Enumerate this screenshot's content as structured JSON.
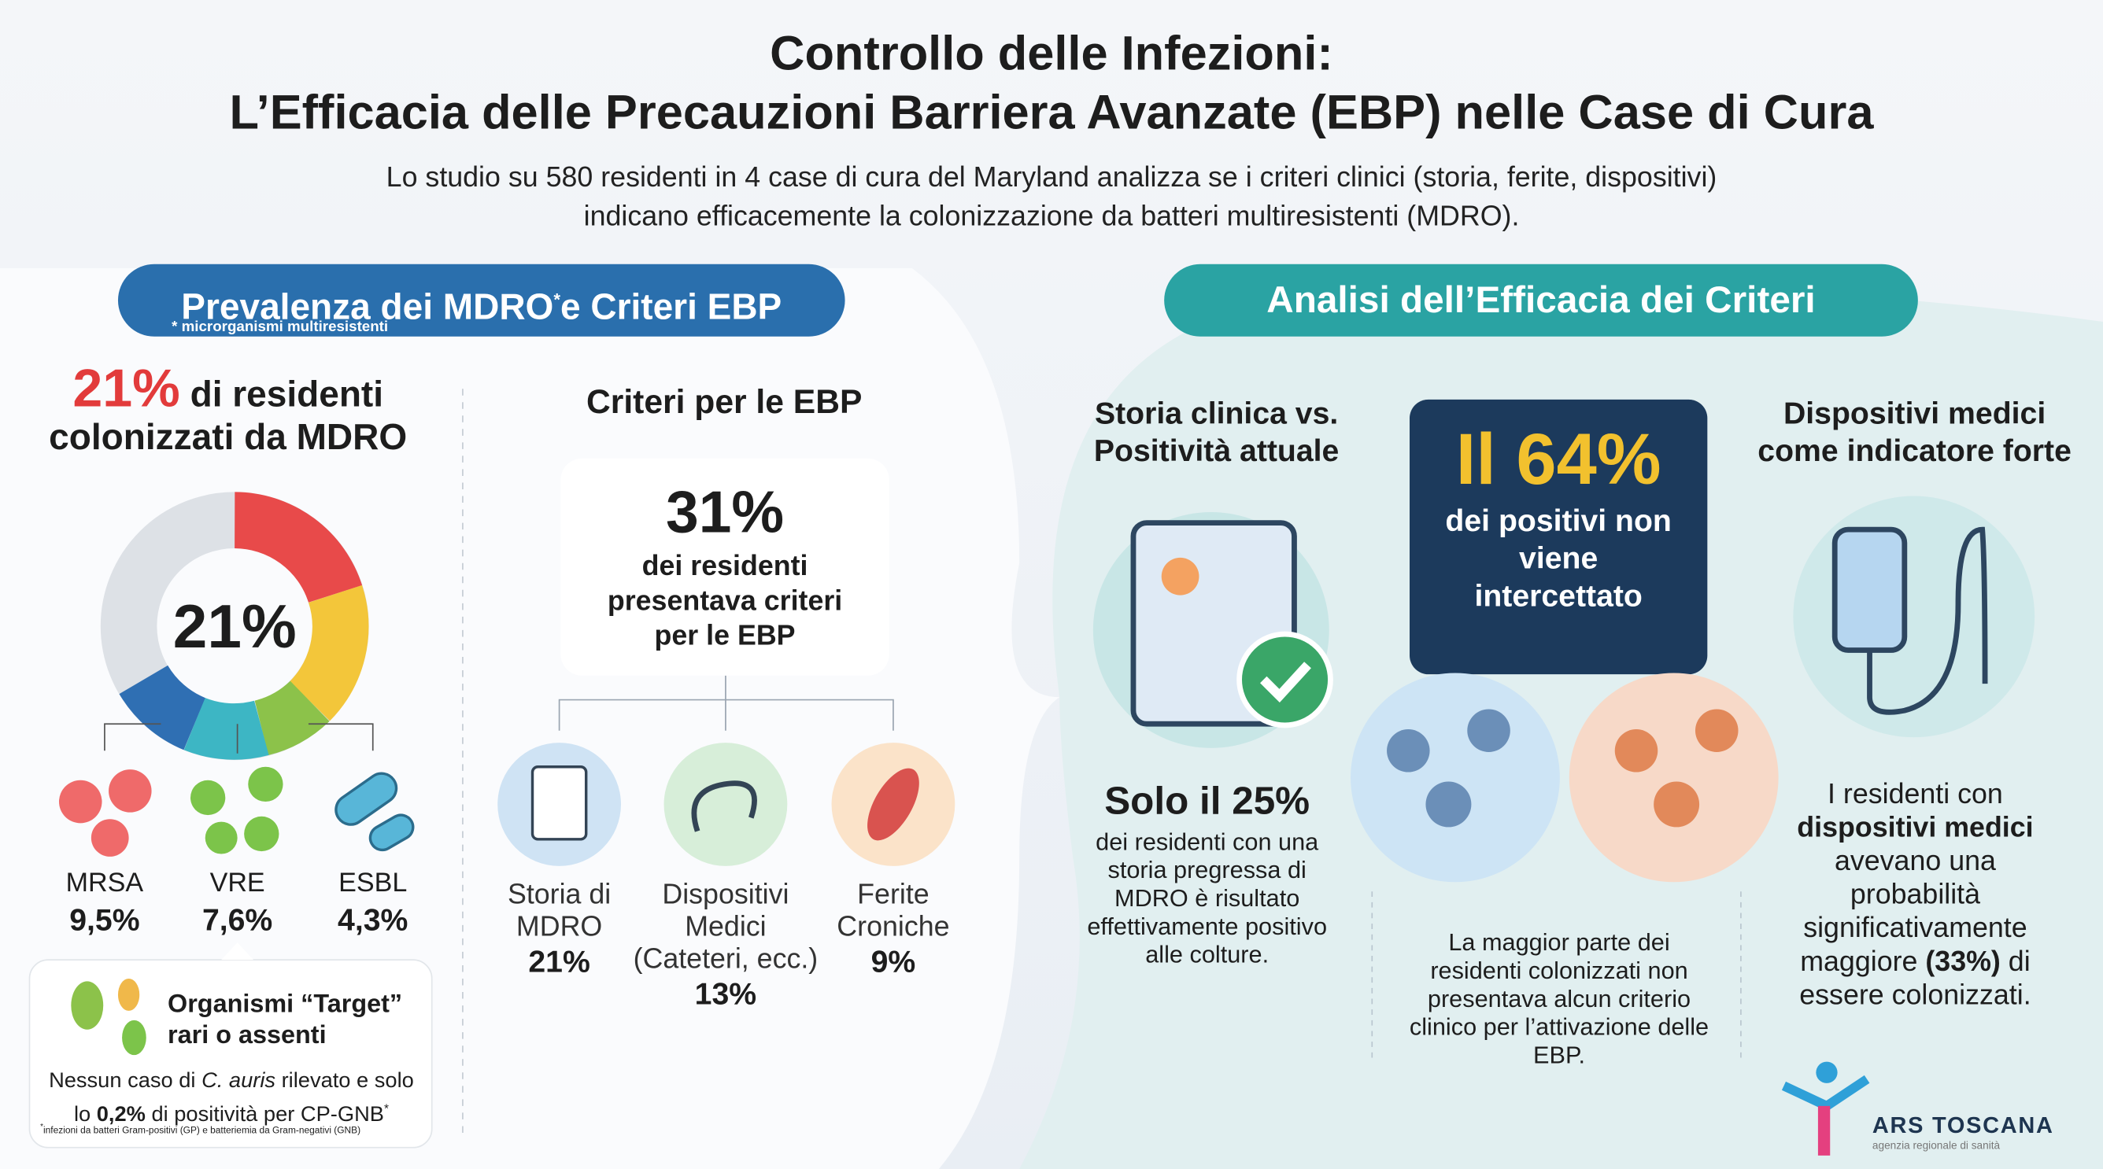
{
  "header": {
    "title_line1": "Controllo delle Infezioni:",
    "title_line2": "L’Efficacia delle Precauzioni Barriera Avanzate (EBP) nelle Case di Cura",
    "subtitle_line1": "Lo studio su 580 residenti in 4 case di cura del Maryland analizza se i criteri clinici (storia, ferite, dispositivi)",
    "subtitle_line2": "indicano efficacemente la colonizzazione da batteri multiresistenti (MDRO)."
  },
  "left_panel": {
    "heading_part1": "Prevalenza dei MDRO",
    "heading_mark": "*",
    "heading_part2": "e Criteri EBP",
    "footnote": "*  microrganismi multiresistenti",
    "prevalence": {
      "percent": "21%",
      "text_line1": "di residenti",
      "text_line2": "colonizzati da MDRO",
      "donut_label": "21%"
    },
    "organisms": [
      {
        "name": "MRSA",
        "value": "9,5%"
      },
      {
        "name": "VRE",
        "value": "7,6%"
      },
      {
        "name": "ESBL",
        "value": "4,3%"
      }
    ],
    "target": {
      "title_line1": "Organismi “Target”",
      "title_line2": "rari o assenti",
      "note_part1": "Nessun caso di ",
      "note_italic": "C. auris",
      "note_part2": " rilevato e solo lo ",
      "note_bold": "0,2%",
      "note_part3": " di positività per CP-GNB",
      "note_mark": "*",
      "footnote_mark": "*",
      "footnote": "infezioni da batteri Gram-positivi (GP) e batteriemia da Gram-negativi (GNB)"
    },
    "criteria": {
      "heading": "Criteri per le EBP",
      "percent": "31%",
      "text": "dei residenti presentava criteri per le EBP",
      "items": [
        {
          "label": "Storia di MDRO",
          "value": "21%"
        },
        {
          "label": "Dispositivi Medici (Cateteri, ecc.)",
          "value": "13%"
        },
        {
          "label": "Ferite Croniche",
          "value": "9%"
        }
      ]
    }
  },
  "right_panel": {
    "heading": "Analisi dell’Efficacia dei Criteri",
    "history": {
      "heading": "Storia clinica vs. Positività attuale",
      "stat": "Solo il 25%",
      "text": "dei residenti con una storia pregressa di MDRO è risultato effettivamente positivo alle colture."
    },
    "missed": {
      "stat": "Il 64%",
      "subtitle": "dei positivi non viene intercettato",
      "text": "La maggior parte dei residenti colonizzati non presentava alcun criterio clinico per l’attivazione delle EBP."
    },
    "devices": {
      "heading": "Dispositivi medici come indicatore forte",
      "text_part1": "I residenti con ",
      "text_bold1": "dispositivi medici",
      "text_part2": " avevano una probabilità significativamente maggiore ",
      "text_bold2": "(33%)",
      "text_part3": " di essere colonizzati."
    }
  },
  "logo": {
    "name": "ARS TOSCANA",
    "tagline": "agenzia regionale di sanità"
  }
}
